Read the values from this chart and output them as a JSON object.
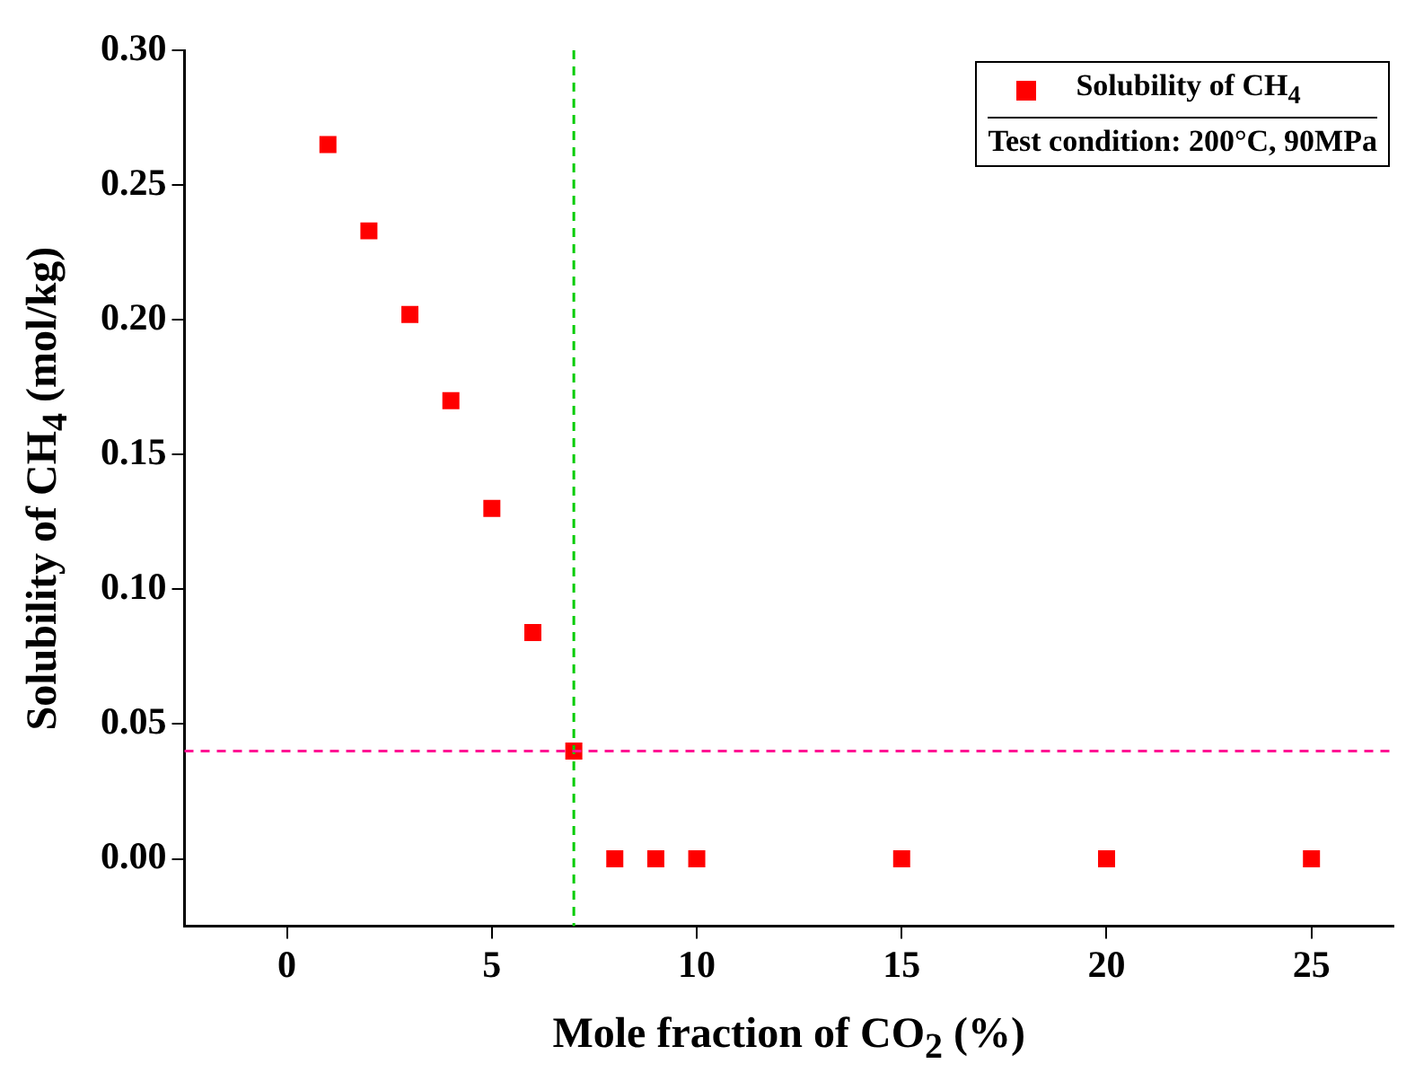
{
  "chart_data": {
    "type": "scatter",
    "xlabel": "Mole fraction of CO$_{2}$ (%)",
    "ylabel": "Solubility of CH$_{4}$ (mol/kg)",
    "x": [
      1,
      2,
      3,
      4,
      5,
      6,
      7,
      8,
      9,
      10,
      15,
      20,
      25
    ],
    "series": [
      {
        "name": "Solubility of CH$_{4}$",
        "color": "#ff0000",
        "values": [
          0.265,
          0.233,
          0.202,
          0.17,
          0.13,
          0.084,
          0.04,
          0,
          0,
          0,
          0,
          0,
          0
        ]
      }
    ],
    "xlim": [
      -2.5,
      27
    ],
    "xticks": [
      0,
      5,
      10,
      15,
      20,
      25
    ],
    "ylim": [
      -0.025,
      0.3
    ],
    "yticks": [
      {
        "value": 0,
        "label": "0.00"
      },
      {
        "value": 0.05,
        "label": "0.05"
      },
      {
        "value": 0.1,
        "label": "0.10"
      },
      {
        "value": 0.15,
        "label": "0.15"
      },
      {
        "value": 0.2,
        "label": "0.20"
      },
      {
        "value": 0.25,
        "label": "0.25"
      },
      {
        "value": 0.3,
        "label": "0.30"
      }
    ],
    "ref_lines": [
      {
        "axis": "x",
        "value": 7,
        "color": "#00cc00",
        "line_style": "dashed"
      },
      {
        "axis": "y",
        "value": 0.04,
        "color": "#ff1493",
        "line_style": "dashed"
      }
    ],
    "annotations": [
      "Test condition: 200°C, 90MPa"
    ],
    "legend": "top right",
    "marker": "square",
    "grid": false
  }
}
